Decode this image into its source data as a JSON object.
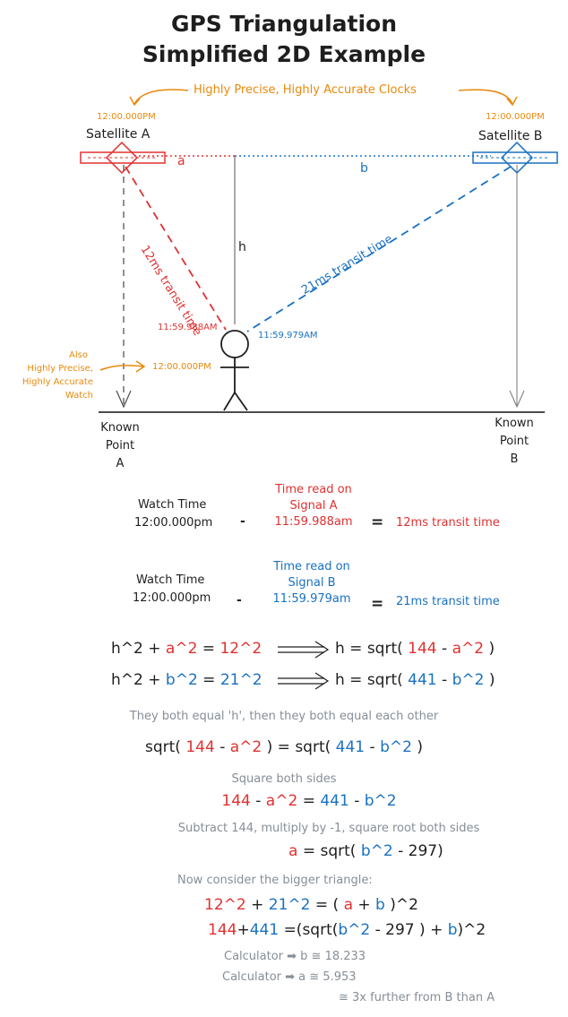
{
  "title": {
    "line1": "GPS Triangulation",
    "line2": "Simplified 2D Example"
  },
  "clocks_caption": "Highly Precise, Highly Accurate Clocks",
  "sat_a": {
    "time": "12:00.000PM",
    "label": "Satellite A"
  },
  "sat_b": {
    "time": "12:00.000PM",
    "label": "Satellite B"
  },
  "segments": {
    "a": "a",
    "b": "b",
    "h": "h"
  },
  "transit_a": "12ms transit time",
  "transit_b": "21ms transit time",
  "time_a_received": "11:59.988AM",
  "time_b_received": "11:59.979AM",
  "watch_note": {
    "l1": "Also",
    "l2": "Highly Precise,",
    "l3": "Highly Accurate",
    "l4": "Watch"
  },
  "watch_time": "12:00.000PM",
  "known_a": {
    "l1": "Known",
    "l2": "Point",
    "l3": "A"
  },
  "known_b": {
    "l1": "Known",
    "l2": "Point",
    "l3": "B"
  },
  "calc_a": {
    "watch_label": "Watch Time",
    "watch_value": "12:00.000pm",
    "minus": "-",
    "read_l1": "Time read on",
    "read_l2": "Signal A",
    "read_value": "11:59.988am",
    "equals": "=",
    "result": "12ms transit time"
  },
  "calc_b": {
    "watch_label": "Watch Time",
    "watch_value": "12:00.000pm",
    "minus": "-",
    "read_l1": "Time read on",
    "read_l2": "Signal B",
    "read_value": "11:59.979am",
    "equals": "=",
    "result": "21ms transit time"
  },
  "eq1": {
    "h2": "h^2",
    "plus": "+",
    "a2": "a^2",
    "eq": "=",
    "rhs": "12^2",
    "h": "h = sqrt(",
    "n": "144",
    "m": "-",
    "v": "a^2",
    "close": ")"
  },
  "eq2": {
    "h2": "h^2",
    "plus": "+",
    "b2": "b^2",
    "eq": "=",
    "rhs": "21^2",
    "h": "h = sqrt(",
    "n": "441",
    "m": "-",
    "v": "b^2",
    "close": ")"
  },
  "both_equal": "They both equal 'h', then they both equal each other",
  "eq3": {
    "s1": "sqrt(",
    "n1": "144",
    "m1": "-",
    "v1": "a^2",
    "mid": ") = sqrt(",
    "n2": "441",
    "m2": "-",
    "v2": "b^2",
    "close": ")"
  },
  "square_both": "Square both sides",
  "eq4": {
    "n1": "144",
    "m1": "-",
    "v1": "a^2",
    "eq": "=",
    "n2": "441",
    "m2": "-",
    "v2": "b^2"
  },
  "subtract": "Subtract 144, multiply by -1, square root both sides",
  "eq5": {
    "a": "a",
    "mid": "= sqrt(",
    "v": "b^2",
    "rest": "- 297)"
  },
  "bigger": "Now consider the bigger triangle:",
  "eq6": {
    "t1": "12^2",
    "plus": "+",
    "t2": "21^2",
    "mid": "= (",
    "a": "a",
    "p": "+",
    "b": "b",
    "close": ")^2"
  },
  "eq7": {
    "n1": "144",
    "plus": "+",
    "n2": "441",
    "mid": "=(sqrt(",
    "v": "b^2",
    "rest": "- 297 ) +",
    "b": "b",
    "close": ")^2"
  },
  "calc_lines": {
    "l1": "Calculator ➡ b ≅ 18.233",
    "l2": "Calculator ➡ a ≅ 5.953",
    "l3": "≅ 3x further from B than A"
  },
  "colors": {
    "red": "#e03131",
    "blue": "#1971c2",
    "orange": "#e8890c",
    "dark": "#1e1e1e",
    "gray": "#868e96"
  }
}
